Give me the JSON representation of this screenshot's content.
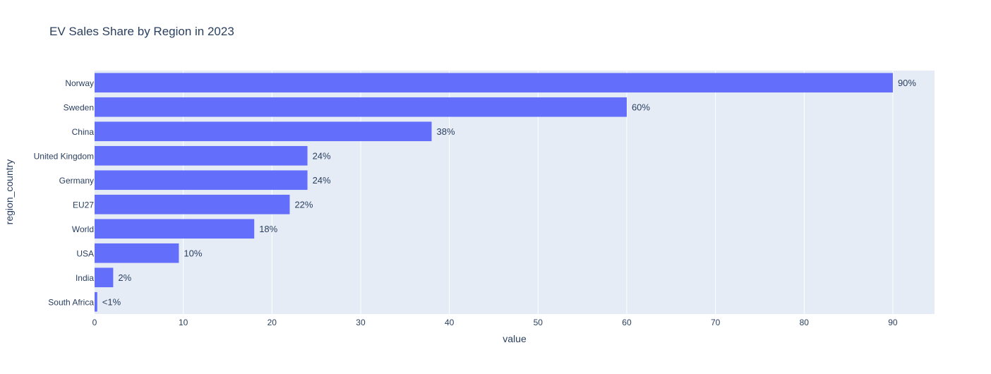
{
  "chart_data": {
    "type": "bar",
    "orientation": "horizontal",
    "title": "EV Sales Share by Region in 2023",
    "xlabel": "value",
    "ylabel": "region_country",
    "xlim": [
      0,
      94.7
    ],
    "xticks": [
      0,
      10,
      20,
      30,
      40,
      50,
      60,
      70,
      80,
      90
    ],
    "grid": true,
    "legend": "none",
    "categories": [
      "Norway",
      "Sweden",
      "China",
      "United Kingdom",
      "Germany",
      "EU27",
      "World",
      "USA",
      "India",
      "South Africa"
    ],
    "values": [
      90,
      60,
      38,
      24,
      24,
      22,
      18,
      9.5,
      2.1,
      0.3
    ],
    "data_labels": [
      "90%",
      "60%",
      "38%",
      "24%",
      "24%",
      "22%",
      "18%",
      "10%",
      "2%",
      "<1%"
    ],
    "colors": {
      "bar": "#636efa",
      "plot_bg": "#e5ecf6",
      "grid": "#ffffff",
      "text": "#2a3f5f",
      "title": "#2a3f5f"
    }
  }
}
